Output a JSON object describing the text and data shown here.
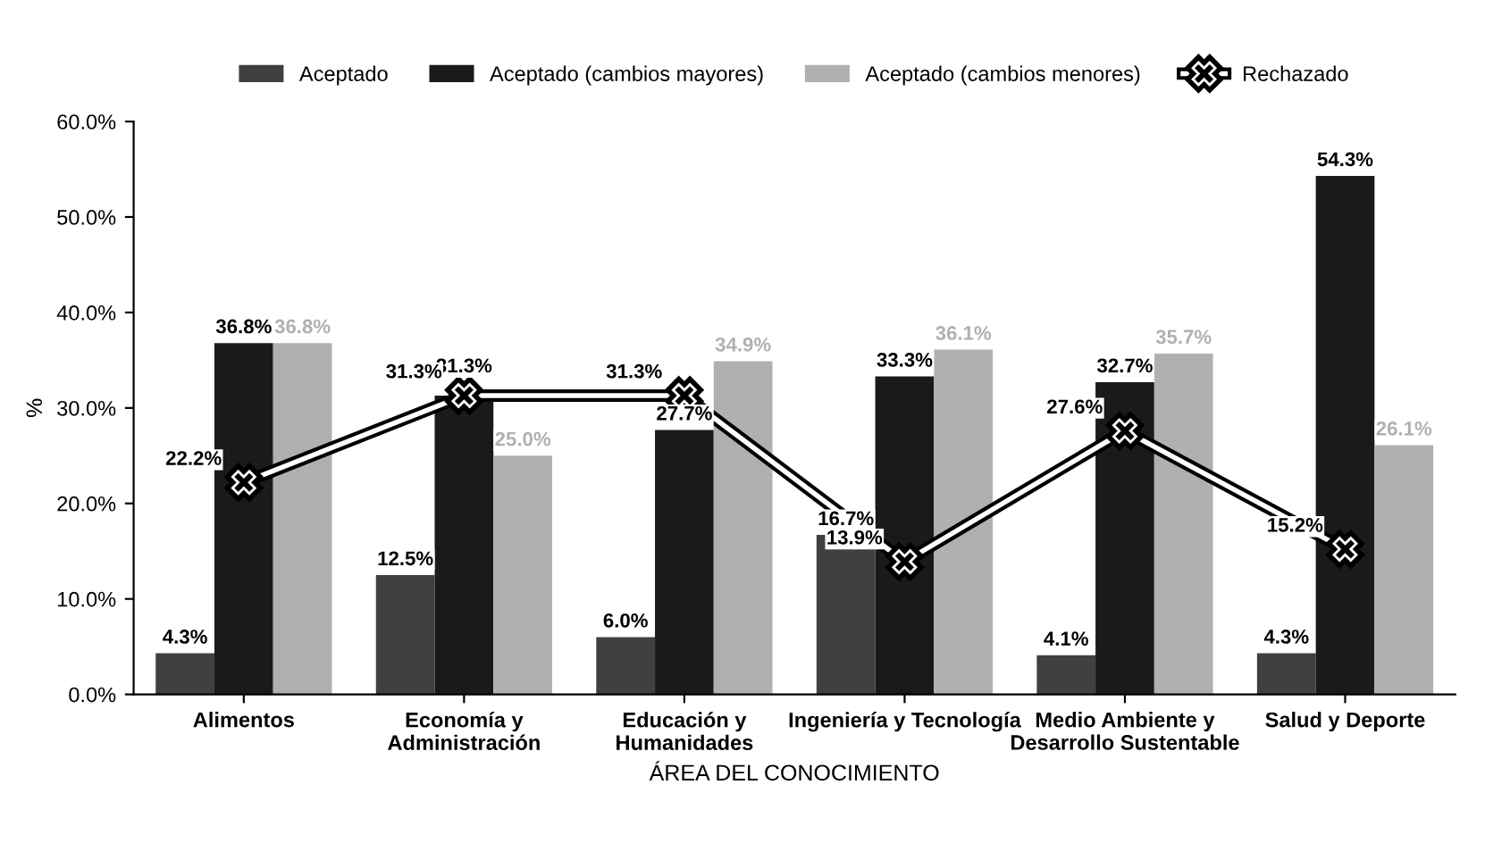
{
  "chart_data": {
    "type": "bar",
    "categories": [
      "Alimentos",
      "Economía y\nAdministración",
      "Educación y\nHumanidades",
      "Ingeniería y Tecnología",
      "Medio Ambiente y\nDesarrollo Sustentable",
      "Salud y Deporte"
    ],
    "series": [
      {
        "name": "Aceptado",
        "color": "#404040",
        "values": [
          4.3,
          12.5,
          6.0,
          16.7,
          4.1,
          4.3
        ],
        "value_labels": [
          "4.3%",
          "12.5%",
          "6.0%",
          "16.7%",
          "4.1%",
          "4.3%"
        ]
      },
      {
        "name": "Aceptado (cambios mayores)",
        "color": "#1a1a1a",
        "values": [
          36.8,
          31.3,
          27.7,
          33.3,
          32.7,
          54.3
        ],
        "value_labels": [
          "36.8%",
          "31.3%",
          "27.7%",
          "33.3%",
          "32.7%",
          "54.3%"
        ]
      },
      {
        "name": "Aceptado (cambios menores)",
        "color": "#b0b0b0",
        "values": [
          36.8,
          25.0,
          34.9,
          36.1,
          35.7,
          26.1
        ],
        "value_labels": [
          "36.8%",
          "25.0%",
          "34.9%",
          "36.1%",
          "35.7%",
          "26.1%"
        ]
      },
      {
        "name": "Rechazado",
        "type": "line",
        "color": "#000000",
        "marker": "cross",
        "line_style": "solid",
        "values": [
          22.2,
          31.3,
          31.3,
          13.9,
          27.6,
          15.2
        ],
        "value_labels": [
          "22.2%",
          "31.3%",
          "31.3%",
          "13.9%",
          "27.6%",
          "15.2%"
        ]
      }
    ],
    "xlabel": "ÁREA DEL CONOCIMIENTO",
    "ylabel": "%",
    "ylim": [
      0,
      60
    ],
    "yticks": [
      {
        "value": 0,
        "label": "0.0%"
      },
      {
        "value": 10,
        "label": "10.0%"
      },
      {
        "value": 20,
        "label": "20.0%"
      },
      {
        "value": 30,
        "label": "30.0%"
      },
      {
        "value": 40,
        "label": "40.0%"
      },
      {
        "value": 50,
        "label": "50.0%"
      },
      {
        "value": 60,
        "label": "60.0%"
      }
    ],
    "legend": "top",
    "grid": false
  }
}
